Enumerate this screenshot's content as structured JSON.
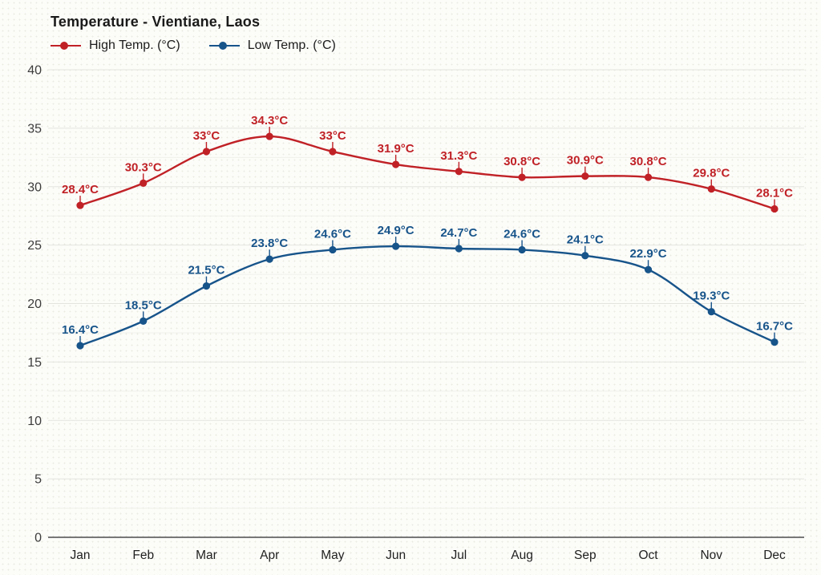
{
  "title": "Temperature - Vientiane, Laos",
  "legend": {
    "items": [
      {
        "label": "High Temp. (°C)",
        "color": "#c02126"
      },
      {
        "label": "Low Temp. (°C)",
        "color": "#17548a"
      }
    ]
  },
  "chart_data": {
    "type": "line",
    "title": "Temperature - Vientiane, Laos",
    "categories": [
      "Jan",
      "Feb",
      "Mar",
      "Apr",
      "May",
      "Jun",
      "Jul",
      "Aug",
      "Sep",
      "Oct",
      "Nov",
      "Dec"
    ],
    "series": [
      {
        "name": "High Temp. (°C)",
        "color": "#c02126",
        "values": [
          28.4,
          30.3,
          33,
          34.3,
          33,
          31.9,
          31.3,
          30.8,
          30.9,
          30.8,
          29.8,
          28.1
        ],
        "point_labels": [
          "28.4°C",
          "30.3°C",
          "33°C",
          "34.3°C",
          "33°C",
          "31.9°C",
          "31.3°C",
          "30.8°C",
          "30.9°C",
          "30.8°C",
          "29.8°C",
          "28.1°C"
        ]
      },
      {
        "name": "Low Temp. (°C)",
        "color": "#17548a",
        "values": [
          16.4,
          18.5,
          21.5,
          23.8,
          24.6,
          24.9,
          24.7,
          24.6,
          24.1,
          22.9,
          19.3,
          16.7
        ],
        "point_labels": [
          "16.4°C",
          "18.5°C",
          "21.5°C",
          "23.8°C",
          "24.6°C",
          "24.9°C",
          "24.7°C",
          "24.6°C",
          "24.1°C",
          "22.9°C",
          "19.3°C",
          "16.7°C"
        ]
      }
    ],
    "xlabel": "",
    "ylabel": "",
    "ylim": [
      0,
      40
    ],
    "yticks": [
      0,
      5,
      10,
      15,
      20,
      25,
      30,
      35,
      40
    ],
    "ytick_labels": [
      "0",
      "5",
      "10",
      "15",
      "20",
      "25",
      "30",
      "35",
      "40"
    ],
    "ytick_minor_step": 2.5,
    "grid": true,
    "legend_position": "top-left",
    "colors": {
      "grid_major": "#e4e4df",
      "grid_minor": "#f0f0ea",
      "axis_line": "#4d4d4d",
      "ytick_text": "#3d3d3d",
      "xtick_text": "#1f1f1f"
    }
  }
}
